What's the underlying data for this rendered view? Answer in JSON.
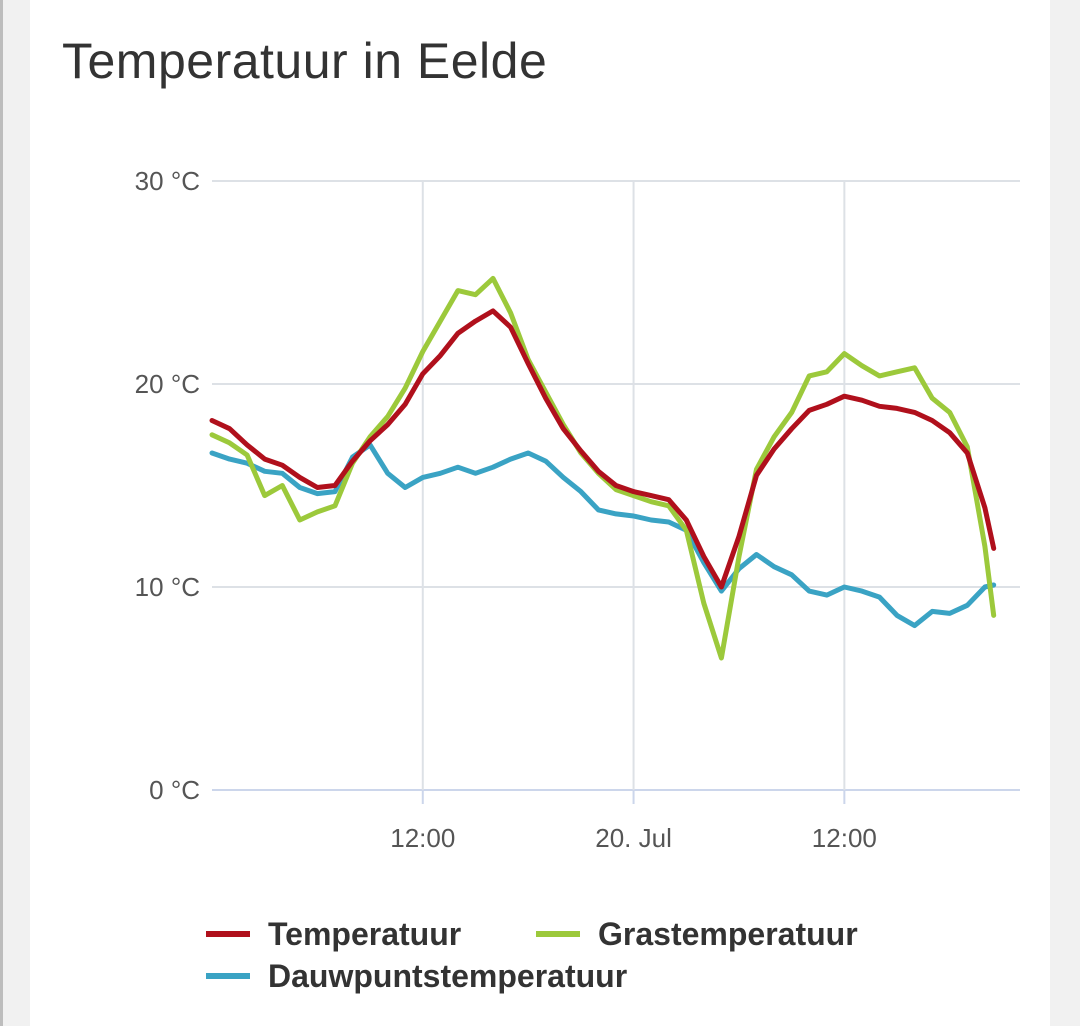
{
  "page": {
    "title": "Temperatuur in Eelde"
  },
  "chart_data": {
    "type": "line",
    "title": "Temperatuur in Eelde",
    "xlabel": "",
    "ylabel": "",
    "x_unit": "hours since first sample",
    "x_range": [
      0,
      46
    ],
    "ylim": [
      0,
      30
    ],
    "grid": true,
    "legend_placement": "bottom",
    "y_ticks": [
      {
        "value": 0,
        "label": "0 °C"
      },
      {
        "value": 10,
        "label": "10 °C"
      },
      {
        "value": 20,
        "label": "20 °C"
      },
      {
        "value": 30,
        "label": "30 °C"
      }
    ],
    "x_ticks": [
      {
        "x": 12,
        "label": "12:00"
      },
      {
        "x": 24,
        "label": "20. Jul"
      },
      {
        "x": 36,
        "label": "12:00"
      }
    ],
    "series": [
      {
        "name": "Temperatuur",
        "color": "#b0101c",
        "points": [
          [
            0,
            18.2
          ],
          [
            1,
            17.8
          ],
          [
            2,
            17.0
          ],
          [
            3,
            16.3
          ],
          [
            4,
            16.0
          ],
          [
            5,
            15.4
          ],
          [
            6,
            14.9
          ],
          [
            7,
            15.0
          ],
          [
            8,
            16.2
          ],
          [
            9,
            17.2
          ],
          [
            10,
            18.0
          ],
          [
            11,
            19.0
          ],
          [
            12,
            20.5
          ],
          [
            13,
            21.4
          ],
          [
            14,
            22.5
          ],
          [
            15,
            23.1
          ],
          [
            16,
            23.6
          ],
          [
            17,
            22.8
          ],
          [
            18,
            21.0
          ],
          [
            19,
            19.3
          ],
          [
            20,
            17.8
          ],
          [
            21,
            16.7
          ],
          [
            22,
            15.7
          ],
          [
            23,
            15.0
          ],
          [
            24,
            14.7
          ],
          [
            25,
            14.5
          ],
          [
            26,
            14.3
          ],
          [
            27,
            13.3
          ],
          [
            28,
            11.5
          ],
          [
            29,
            10.0
          ],
          [
            30,
            12.5
          ],
          [
            31,
            15.5
          ],
          [
            32,
            16.8
          ],
          [
            33,
            17.8
          ],
          [
            34,
            18.7
          ],
          [
            35,
            19.0
          ],
          [
            36,
            19.4
          ],
          [
            37,
            19.2
          ],
          [
            38,
            18.9
          ],
          [
            39,
            18.8
          ],
          [
            40,
            18.6
          ],
          [
            41,
            18.2
          ],
          [
            42,
            17.6
          ],
          [
            43,
            16.6
          ],
          [
            44,
            13.9
          ],
          [
            44.5,
            11.9
          ]
        ]
      },
      {
        "name": "Grastemperatuur",
        "color": "#9cc93b",
        "points": [
          [
            0,
            17.5
          ],
          [
            1,
            17.1
          ],
          [
            2,
            16.5
          ],
          [
            3,
            14.5
          ],
          [
            4,
            15.0
          ],
          [
            5,
            13.3
          ],
          [
            6,
            13.7
          ],
          [
            7,
            14.0
          ],
          [
            8,
            16.1
          ],
          [
            9,
            17.4
          ],
          [
            10,
            18.4
          ],
          [
            11,
            19.8
          ],
          [
            12,
            21.6
          ],
          [
            13,
            23.1
          ],
          [
            14,
            24.6
          ],
          [
            15,
            24.4
          ],
          [
            16,
            25.2
          ],
          [
            17,
            23.5
          ],
          [
            18,
            21.2
          ],
          [
            19,
            19.6
          ],
          [
            20,
            18.0
          ],
          [
            21,
            16.6
          ],
          [
            22,
            15.6
          ],
          [
            23,
            14.8
          ],
          [
            24,
            14.5
          ],
          [
            25,
            14.2
          ],
          [
            26,
            14.0
          ],
          [
            27,
            12.8
          ],
          [
            28,
            9.2
          ],
          [
            29,
            6.5
          ],
          [
            30,
            11.5
          ],
          [
            31,
            15.8
          ],
          [
            32,
            17.4
          ],
          [
            33,
            18.6
          ],
          [
            34,
            20.4
          ],
          [
            35,
            20.6
          ],
          [
            36,
            21.5
          ],
          [
            37,
            20.9
          ],
          [
            38,
            20.4
          ],
          [
            39,
            20.6
          ],
          [
            40,
            20.8
          ],
          [
            41,
            19.3
          ],
          [
            42,
            18.6
          ],
          [
            43,
            16.9
          ],
          [
            44,
            12.0
          ],
          [
            44.5,
            8.6
          ]
        ]
      },
      {
        "name": "Dauwpuntstemperatuur",
        "color": "#3aa3c4",
        "points": [
          [
            0,
            16.6
          ],
          [
            1,
            16.3
          ],
          [
            2,
            16.1
          ],
          [
            3,
            15.7
          ],
          [
            4,
            15.6
          ],
          [
            5,
            14.9
          ],
          [
            6,
            14.6
          ],
          [
            7,
            14.7
          ],
          [
            8,
            16.4
          ],
          [
            9,
            17.0
          ],
          [
            10,
            15.6
          ],
          [
            11,
            14.9
          ],
          [
            12,
            15.4
          ],
          [
            13,
            15.6
          ],
          [
            14,
            15.9
          ],
          [
            15,
            15.6
          ],
          [
            16,
            15.9
          ],
          [
            17,
            16.3
          ],
          [
            18,
            16.6
          ],
          [
            19,
            16.2
          ],
          [
            20,
            15.4
          ],
          [
            21,
            14.7
          ],
          [
            22,
            13.8
          ],
          [
            23,
            13.6
          ],
          [
            24,
            13.5
          ],
          [
            25,
            13.3
          ],
          [
            26,
            13.2
          ],
          [
            27,
            12.8
          ],
          [
            28,
            11.2
          ],
          [
            29,
            9.8
          ],
          [
            30,
            10.9
          ],
          [
            31,
            11.6
          ],
          [
            32,
            11.0
          ],
          [
            33,
            10.6
          ],
          [
            34,
            9.8
          ],
          [
            35,
            9.6
          ],
          [
            36,
            10.0
          ],
          [
            37,
            9.8
          ],
          [
            38,
            9.5
          ],
          [
            39,
            8.6
          ],
          [
            40,
            8.1
          ],
          [
            41,
            8.8
          ],
          [
            42,
            8.7
          ],
          [
            43,
            9.1
          ],
          [
            44,
            10.0
          ],
          [
            44.5,
            10.1
          ]
        ]
      }
    ]
  }
}
